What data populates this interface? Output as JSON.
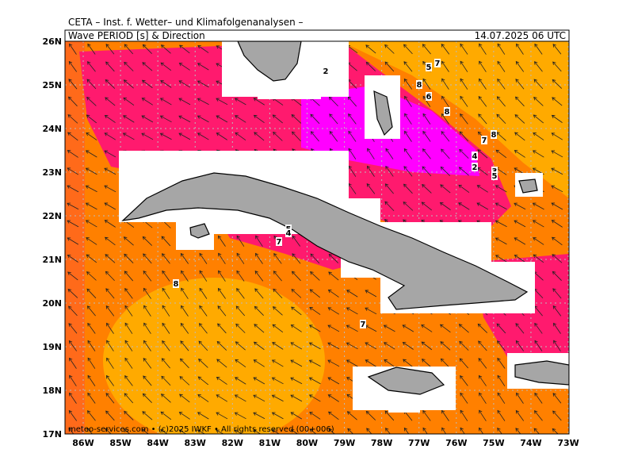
{
  "header": {
    "line1": "CETA – Inst. f. Wetter– und Klimafolgenanalysen –",
    "title": "Wave PERIOD [s] & Direction",
    "datetime": "14.07.2025 06 UTC"
  },
  "axes": {
    "lat_labels": [
      "26N",
      "25N",
      "24N",
      "23N",
      "22N",
      "21N",
      "20N",
      "19N",
      "18N",
      "17N"
    ],
    "lon_labels": [
      "86W",
      "85W",
      "84W",
      "83W",
      "82W",
      "81W",
      "80W",
      "79W",
      "78W",
      "77W",
      "76W",
      "75W",
      "74W",
      "73W"
    ]
  },
  "contour_labels": [
    "2",
    "5",
    "7",
    "8",
    "6",
    "8",
    "7",
    "8",
    "4",
    "2",
    "3",
    "5",
    "5",
    "4",
    "7",
    "8",
    "7"
  ],
  "footer": "meteo-services.com • (c)2025 IWKF • All rights reserved (00+006)"
}
